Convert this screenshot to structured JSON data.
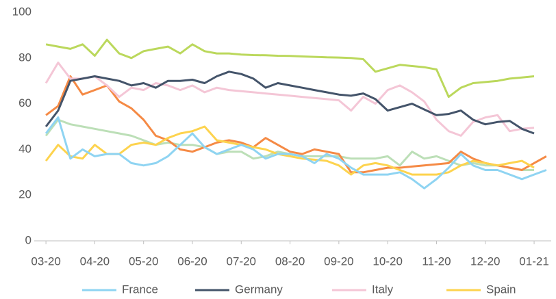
{
  "chart_data": {
    "type": "line",
    "x": [
      0,
      0.25,
      0.5,
      0.75,
      1,
      1.25,
      1.5,
      1.75,
      2,
      2.25,
      2.5,
      2.75,
      3,
      3.25,
      3.5,
      3.75,
      4,
      4.25,
      4.5,
      4.75,
      5,
      5.25,
      5.5,
      5.75,
      6,
      6.25,
      6.5,
      6.75,
      7,
      7.25,
      7.5,
      7.75,
      8,
      8.25,
      8.5,
      8.75,
      9,
      9.25,
      9.5,
      9.75,
      10,
      10.25
    ],
    "xlim": [
      -0.24,
      10.35
    ],
    "xticks": [
      {
        "value": 0,
        "label": "03-20"
      },
      {
        "value": 1,
        "label": "04-20"
      },
      {
        "value": 2,
        "label": "05-20"
      },
      {
        "value": 3,
        "label": "06-20"
      },
      {
        "value": 4,
        "label": "07-20"
      },
      {
        "value": 5,
        "label": "08-20"
      },
      {
        "value": 6,
        "label": "09-20"
      },
      {
        "value": 7,
        "label": "10-20"
      },
      {
        "value": 8,
        "label": "11-20"
      },
      {
        "value": 9,
        "label": "12-20"
      },
      {
        "value": 10,
        "label": "01-21"
      }
    ],
    "ylim": [
      0,
      100
    ],
    "yticks": [
      0,
      20,
      40,
      60,
      80,
      100
    ],
    "grid": false,
    "legend": "bottom",
    "series": [
      {
        "name": "France",
        "color": "#8fd4f2",
        "values": [
          47,
          54,
          36,
          40,
          37,
          38,
          38,
          34,
          33,
          34,
          37,
          42,
          47,
          41,
          38,
          40,
          42,
          40,
          36,
          38,
          38,
          37,
          34,
          38,
          36,
          32,
          29,
          29,
          29,
          30,
          27,
          23,
          27,
          32,
          38,
          33,
          31,
          31,
          29,
          27,
          29,
          31
        ]
      },
      {
        "name": "Germany",
        "color": "#44546a",
        "values": [
          50,
          57,
          70,
          71,
          72,
          71,
          70,
          68,
          69,
          67,
          70,
          70,
          70.5,
          69,
          72,
          74,
          73,
          71,
          67,
          69,
          68,
          67,
          66,
          65,
          64,
          63.5,
          64.5,
          62,
          57,
          58.5,
          60,
          57.5,
          55,
          55.5,
          57,
          53,
          51,
          52,
          52.5,
          49,
          47,
          null
        ]
      },
      {
        "name": "Italy",
        "color": "#f4c6d6",
        "values": [
          69,
          78,
          71,
          71,
          72,
          68,
          63,
          67,
          66,
          69,
          68,
          66,
          68,
          65,
          67,
          66,
          65.5,
          65,
          64.5,
          64,
          63.5,
          63,
          62.5,
          62,
          61.5,
          57,
          63,
          60,
          66,
          68,
          65,
          61,
          53,
          48,
          46,
          52,
          54,
          55,
          48,
          49,
          49.5,
          null
        ]
      },
      {
        "name": "Spain",
        "color": "#fdd34e",
        "values": [
          35,
          42,
          37,
          36,
          42,
          38,
          38,
          42,
          43,
          42,
          45,
          47,
          48,
          50,
          44,
          43,
          42,
          41,
          40,
          38,
          37,
          36,
          35.5,
          35,
          33,
          29,
          33,
          34,
          33,
          31,
          29,
          29,
          29,
          30,
          33,
          35,
          34,
          33,
          34,
          35,
          32,
          null
        ]
      },
      {
        "color": "#f58a45",
        "values": [
          55,
          59,
          72,
          64,
          66,
          68,
          61,
          58,
          53,
          46,
          44,
          40,
          39,
          41,
          43,
          44,
          43,
          41,
          45,
          42,
          39,
          38,
          40,
          39,
          38,
          30,
          30,
          31,
          32,
          32,
          32.5,
          33,
          33.5,
          34,
          39,
          36,
          34,
          33,
          32,
          31,
          34,
          37
        ]
      },
      {
        "color": "#bcdfb7",
        "values": [
          46,
          53,
          51,
          50,
          49,
          48,
          47,
          46,
          44,
          42,
          43,
          42,
          42,
          41,
          38,
          39,
          39,
          36,
          37,
          39,
          38,
          37,
          37,
          37,
          37,
          36,
          36,
          36,
          37,
          33,
          39,
          36,
          37,
          35,
          33,
          34,
          33,
          33,
          32,
          31,
          31,
          null
        ]
      },
      {
        "color": "#bbd85c",
        "values": [
          86,
          85,
          84,
          86,
          81,
          88,
          82,
          80,
          83,
          84,
          85,
          82,
          86,
          83,
          82,
          82,
          81.5,
          81.3,
          81.2,
          81,
          80.9,
          80.7,
          80.5,
          80.3,
          80.2,
          80,
          79.5,
          74,
          75.5,
          77,
          76.5,
          76,
          75,
          63,
          67,
          69,
          69.5,
          70,
          71,
          71.5,
          72,
          null
        ]
      }
    ]
  }
}
